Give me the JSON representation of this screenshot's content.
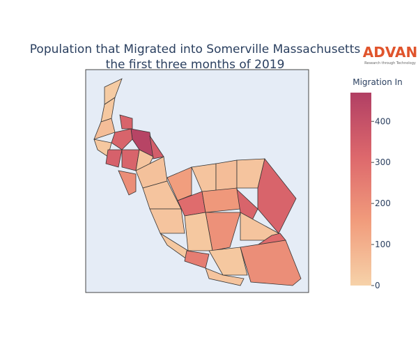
{
  "chart_data": {
    "type": "choropleth",
    "title": [
      "Population that Migrated into Somerville Massachusetts",
      "the first three months of 2019"
    ],
    "colorbar_title": "Migration In",
    "colorscale": [
      "#f6d2a9",
      "#f19c7c",
      "#dd686c",
      "#b13f64"
    ],
    "zlim": [
      0,
      470
    ],
    "zticks": [
      0,
      100,
      200,
      300,
      400
    ],
    "values": [
      20,
      30,
      60,
      330,
      450,
      330,
      350,
      30,
      340,
      330,
      40,
      200,
      50,
      40,
      150,
      300,
      40,
      40,
      60,
      170,
      40,
      330,
      330,
      190,
      30,
      40,
      300,
      30,
      250,
      30,
      200,
      40
    ]
  },
  "logo": {
    "name": "ADVAN",
    "tagline": "Research through Technology"
  }
}
